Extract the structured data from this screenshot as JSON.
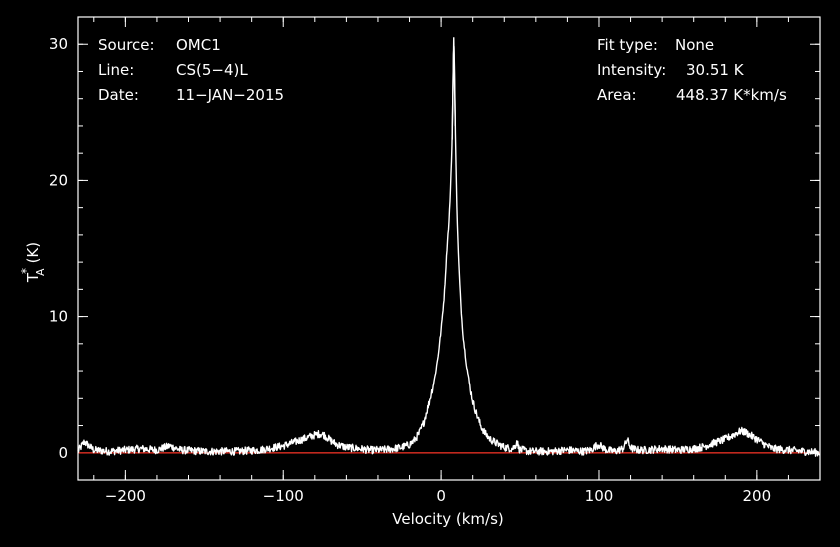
{
  "colors": {
    "background": "#000000",
    "frame": "#ffffff",
    "spectrum": "#ffffff",
    "baseline": "#c0281e",
    "text": "#ffffff"
  },
  "info_left": [
    {
      "key": "Source:",
      "value": "OMC1"
    },
    {
      "key": "Line:",
      "value": "CS(5−4)L"
    },
    {
      "key": "Date:",
      "value": "11−JAN−2015"
    }
  ],
  "info_right": [
    {
      "key": "Fit type:",
      "value": "None"
    },
    {
      "key": "Intensity:",
      "value": "30.51 K"
    },
    {
      "key": "Area:",
      "value": "448.37 K*km/s"
    }
  ],
  "chart_data": {
    "type": "line",
    "xlabel": "Velocity (km/s)",
    "ylabel_main": "T",
    "ylabel_sub": "A",
    "ylabel_sup": "*",
    "ylabel_unit": "(K)",
    "xlim": [
      -230,
      240
    ],
    "ylim": [
      -2,
      32
    ],
    "xticks": [
      {
        "value": -200,
        "label": "−200"
      },
      {
        "value": -100,
        "label": "−100"
      },
      {
        "value": 0,
        "label": "0"
      },
      {
        "value": 100,
        "label": "100"
      },
      {
        "value": 200,
        "label": "200"
      }
    ],
    "yticks": [
      {
        "value": 0,
        "label": "0"
      },
      {
        "value": 10,
        "label": "10"
      },
      {
        "value": 20,
        "label": "20"
      },
      {
        "value": 30,
        "label": "30"
      }
    ],
    "x_minor_step": 20,
    "y_minor_step": 2,
    "baseline": 0,
    "grid": false,
    "series": [
      {
        "x": [
          -230,
          -226,
          -220,
          -210,
          -200,
          -190,
          -180,
          -172,
          -165,
          -150,
          -130,
          -115,
          -105,
          -100,
          -95,
          -90,
          -85,
          -80,
          -77,
          -74,
          -70,
          -66,
          -60,
          -52,
          -45,
          -38,
          -30,
          -25,
          -20,
          -17,
          -14,
          -11,
          -8,
          -6,
          -4,
          -2,
          0,
          2,
          3,
          4,
          5,
          6,
          7,
          7.5,
          8,
          8.5,
          9,
          9.5,
          10,
          11,
          12,
          13,
          14,
          16,
          18,
          20,
          22,
          25,
          28,
          31,
          35,
          40,
          45,
          47,
          48,
          49,
          50,
          52,
          55,
          60,
          70,
          80,
          90,
          95,
          98,
          100,
          102,
          105,
          110,
          115,
          117,
          118,
          119,
          121,
          125,
          130,
          140,
          150,
          160,
          165,
          170,
          175,
          180,
          185,
          188,
          190,
          193,
          197,
          200,
          205,
          210,
          220,
          230,
          240
        ],
        "y": [
          0.1,
          0.8,
          0.2,
          0.1,
          0.2,
          0.3,
          0.2,
          0.5,
          0.2,
          0.1,
          0.1,
          0.2,
          0.4,
          0.5,
          0.7,
          0.9,
          1.1,
          1.3,
          1.4,
          1.3,
          0.9,
          0.6,
          0.4,
          0.3,
          0.2,
          0.2,
          0.3,
          0.4,
          0.6,
          0.9,
          1.4,
          2.2,
          3.5,
          4.5,
          5.5,
          7.0,
          9.0,
          11.5,
          13.5,
          15.5,
          17.0,
          19.5,
          23.0,
          27.0,
          30.51,
          28.0,
          24.0,
          21.0,
          18.0,
          14.5,
          12.0,
          10.0,
          8.5,
          6.5,
          5.0,
          3.8,
          3.0,
          2.0,
          1.4,
          1.0,
          0.7,
          0.4,
          0.3,
          0.5,
          0.9,
          0.4,
          0.2,
          0.2,
          0.1,
          0.1,
          0.1,
          0.2,
          0.1,
          0.2,
          0.5,
          0.6,
          0.4,
          0.2,
          0.1,
          0.3,
          0.7,
          1.0,
          0.6,
          0.3,
          0.2,
          0.2,
          0.3,
          0.2,
          0.3,
          0.4,
          0.6,
          0.8,
          1.0,
          1.3,
          1.5,
          1.6,
          1.5,
          1.2,
          1.0,
          0.6,
          0.3,
          0.2,
          0.1,
          0.0
        ]
      }
    ]
  }
}
